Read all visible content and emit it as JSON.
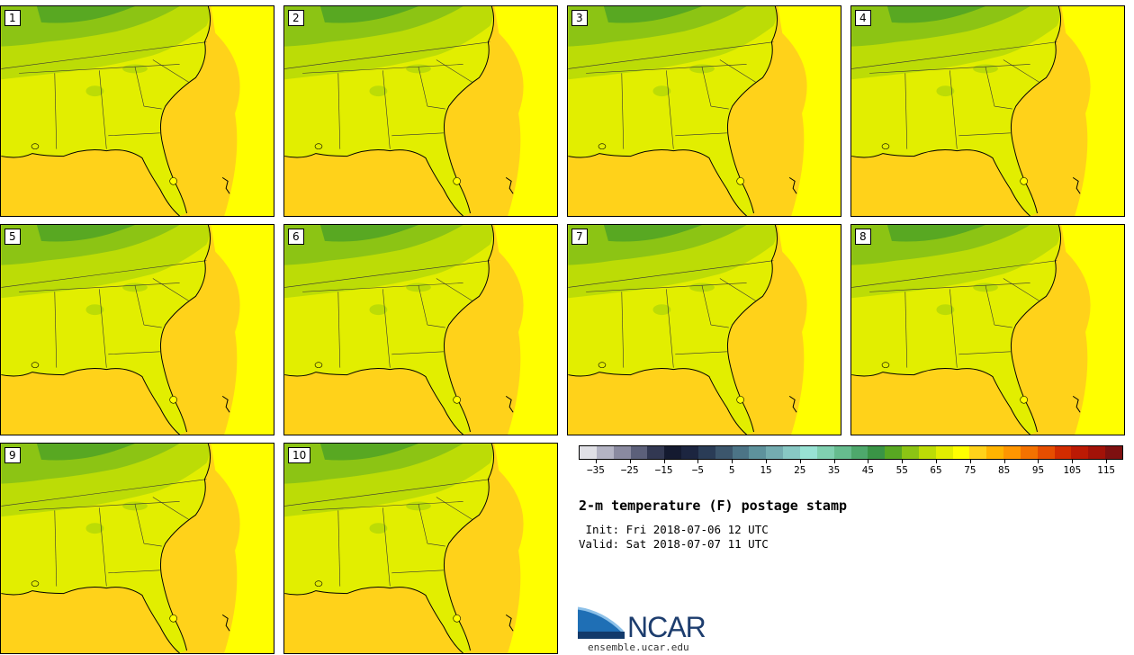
{
  "panels": [
    {
      "label": "1"
    },
    {
      "label": "2"
    },
    {
      "label": "3"
    },
    {
      "label": "4"
    },
    {
      "label": "5"
    },
    {
      "label": "6"
    },
    {
      "label": "7"
    },
    {
      "label": "8"
    },
    {
      "label": "9"
    },
    {
      "label": "10"
    }
  ],
  "colorbar": {
    "colors": [
      "#e0e0e6",
      "#b4b4c4",
      "#8a8aa0",
      "#5c607a",
      "#323852",
      "#141a30",
      "#1c2540",
      "#2a3c56",
      "#3c566c",
      "#4c7486",
      "#5e929c",
      "#74acb0",
      "#88c8c4",
      "#98e2d4",
      "#80d0b0",
      "#66bc8e",
      "#4ea86c",
      "#3a9446",
      "#58a822",
      "#8cc414",
      "#bcdc06",
      "#e2ee00",
      "#ffff00",
      "#ffd21a",
      "#ffb400",
      "#ff9600",
      "#f47200",
      "#e64e00",
      "#d22c00",
      "#bc1a04",
      "#a21208",
      "#7e1010"
    ],
    "tick_labels": [
      "−35",
      "−25",
      "−15",
      "−5",
      "5",
      "15",
      "25",
      "35",
      "45",
      "55",
      "65",
      "75",
      "85",
      "95",
      "105",
      "115"
    ]
  },
  "title": "2-m temperature (F) postage stamp",
  "init": " Init: Fri 2018-07-06 12 UTC",
  "valid": "Valid: Sat 2018-07-07 11 UTC",
  "logo": {
    "text": "NCAR",
    "url_text": "ensemble.ucar.edu"
  },
  "map_colors": {
    "ocean": "#ffd21a",
    "ocean_warm": "#ffe600",
    "land": "#e2ee00",
    "land_mid": "#bcdc06",
    "land_cool": "#8cc414",
    "land_cold": "#58a822"
  }
}
